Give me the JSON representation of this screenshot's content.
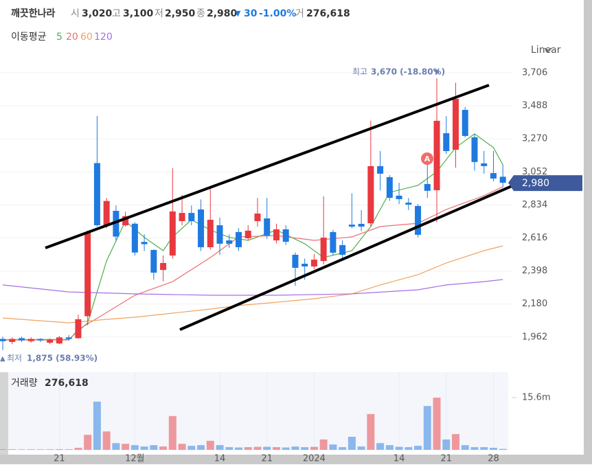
{
  "header": {
    "name": "깨끗한나라",
    "items": [
      {
        "label": "시",
        "value": "3,020"
      },
      {
        "label": "고",
        "value": "3,100"
      },
      {
        "label": "저",
        "value": "2,950"
      },
      {
        "label": "종",
        "value": "2,980"
      }
    ],
    "change_arrow": "▼",
    "change": "30",
    "change_pct": "-1.00%",
    "volume_label": "거",
    "volume": "276,618"
  },
  "scale_menu": "Linear",
  "chart_data": {
    "type": "candlestick",
    "ma_legend_title": "이동평균",
    "categories": [
      null,
      null,
      null,
      null,
      null,
      null,
      "21",
      null,
      null,
      null,
      null,
      null,
      null,
      null,
      "12월",
      null,
      null,
      null,
      null,
      null,
      null,
      null,
      null,
      "14",
      null,
      null,
      null,
      null,
      "21",
      null,
      null,
      null,
      null,
      "2024",
      null,
      null,
      null,
      null,
      null,
      null,
      null,
      null,
      "14",
      null,
      null,
      null,
      null,
      "21",
      null,
      null,
      null,
      null,
      "28",
      null
    ],
    "open": [
      1950,
      1930,
      1955,
      1935,
      1950,
      1925,
      1920,
      1960,
      1955,
      2100,
      3110,
      2700,
      2795,
      2700,
      2710,
      2590,
      2537,
      2405,
      2500,
      2727,
      2781,
      2804,
      2555,
      2700,
      2600,
      2655,
      2614,
      2727,
      2745,
      2600,
      2673,
      2505,
      2446,
      2428,
      2464,
      2655,
      2569,
      2704,
      2709,
      2713,
      3090,
      3017,
      2895,
      2849,
      2827,
      2972,
      2931,
      3307,
      3198,
      3461,
      3280,
      3108,
      3044,
      3020
    ],
    "high": [
      1965,
      1960,
      1965,
      1960,
      1955,
      1955,
      1970,
      1975,
      2110,
      2665,
      3420,
      2880,
      2830,
      2790,
      2720,
      2640,
      2540,
      2500,
      3076,
      2900,
      2830,
      2870,
      2945,
      2750,
      2640,
      2680,
      2700,
      2880,
      2880,
      2710,
      2700,
      2520,
      2480,
      2510,
      2890,
      2670,
      2600,
      2910,
      2800,
      3390,
      3190,
      3030,
      2980,
      2880,
      2840,
      3140,
      3670,
      3420,
      3640,
      3480,
      3300,
      3190,
      3190,
      3100
    ],
    "low": [
      1875,
      1915,
      1930,
      1925,
      1930,
      1915,
      1915,
      1940,
      1950,
      2040,
      2690,
      2680,
      2600,
      2690,
      2500,
      2530,
      2340,
      2330,
      2480,
      2700,
      2700,
      2530,
      2540,
      2505,
      2550,
      2530,
      2600,
      2690,
      2610,
      2580,
      2570,
      2300,
      2340,
      2410,
      2440,
      2500,
      2480,
      2680,
      2660,
      2690,
      2930,
      2860,
      2840,
      2800,
      2620,
      2880,
      2720,
      3170,
      3080,
      3280,
      3060,
      3040,
      2990,
      2950
    ],
    "close": [
      1935,
      1950,
      1940,
      1950,
      1940,
      1945,
      1960,
      1950,
      2080,
      2650,
      2700,
      2860,
      2625,
      2760,
      2520,
      2575,
      2387,
      2451,
      2791,
      2781,
      2727,
      2555,
      2736,
      2578,
      2578,
      2555,
      2664,
      2777,
      2632,
      2673,
      2591,
      2419,
      2428,
      2473,
      2618,
      2519,
      2505,
      2691,
      2691,
      3090,
      3040,
      2881,
      2872,
      2836,
      2637,
      2927,
      3389,
      3189,
      3534,
      3289,
      3117,
      3090,
      3008,
      2980
    ],
    "volume_title": "거래량",
    "volume_value": "276,618",
    "volume": [
      150000,
      180000,
      140000,
      160000,
      150000,
      170000,
      200000,
      180000,
      600000,
      4500000,
      14400000,
      5500000,
      2000000,
      1800000,
      1400000,
      1000000,
      1400000,
      1000000,
      10100000,
      1800000,
      1200000,
      1400000,
      2700000,
      1400000,
      800000,
      700000,
      800000,
      900000,
      900000,
      800000,
      700000,
      1000000,
      800000,
      900000,
      3100000,
      1600000,
      800000,
      3900000,
      1000000,
      10700000,
      2000000,
      1400000,
      900000,
      800000,
      1200000,
      13100000,
      15600000,
      3100000,
      4700000,
      1400000,
      800000,
      800000,
      600000,
      276618
    ],
    "up_color": "#e8393f",
    "down_color": "#1f7ae0",
    "ylim": [
      1762,
      3914
    ],
    "yticks": [
      {
        "value": 1962,
        "label": "1,962"
      },
      {
        "value": 2180,
        "label": "2,180"
      },
      {
        "value": 2398,
        "label": "2,398"
      },
      {
        "value": 2616,
        "label": "2,616"
      },
      {
        "value": 2834,
        "label": "2,834"
      },
      {
        "value": 3052,
        "label": "3,052"
      },
      {
        "value": 3270,
        "label": "3,270"
      },
      {
        "value": 3488,
        "label": "3,488"
      },
      {
        "value": 3706,
        "label": "3,706"
      }
    ],
    "volume_ylim": [
      0,
      22580000
    ],
    "volume_yticks": [
      {
        "value": 15600000,
        "label": "15.6m"
      }
    ],
    "grid": true,
    "series": [
      {
        "name": "5",
        "color": "#4caf50",
        "x": [
          0,
          7,
          9,
          11,
          13,
          15,
          17,
          18,
          20,
          22,
          24,
          26,
          29,
          32,
          34,
          37,
          39,
          41,
          44,
          46,
          48,
          50,
          52,
          53
        ],
        "values": [
          1945,
          1947,
          2056,
          2464,
          2727,
          2620,
          2532,
          2623,
          2736,
          2668,
          2620,
          2600,
          2668,
          2578,
          2487,
          2532,
          2691,
          2917,
          2963,
          3053,
          3212,
          3303,
          3212,
          3099
        ]
      },
      {
        "name": "20",
        "color": "#ec6f6f",
        "x": [
          0,
          7,
          8,
          11,
          14,
          18,
          22,
          25,
          29,
          33,
          37,
          40,
          44,
          47,
          51,
          53
        ],
        "values": [
          1943,
          1943,
          2011,
          2124,
          2238,
          2328,
          2487,
          2623,
          2632,
          2600,
          2623,
          2691,
          2713,
          2804,
          2895,
          2954
        ]
      },
      {
        "name": "60",
        "color": "#f2a25c",
        "x": [
          0,
          7,
          11,
          14,
          18,
          22,
          25,
          29,
          33,
          37,
          40,
          44,
          47,
          51,
          53
        ],
        "values": [
          2088,
          2056,
          2079,
          2093,
          2120,
          2147,
          2170,
          2192,
          2215,
          2247,
          2306,
          2374,
          2451,
          2532,
          2564
        ]
      },
      {
        "name": "120",
        "color": "#a56ee6",
        "x": [
          0,
          7,
          14,
          22,
          29,
          37,
          44,
          47,
          51,
          53
        ],
        "values": [
          2306,
          2260,
          2247,
          2238,
          2238,
          2247,
          2274,
          2306,
          2328,
          2342
        ]
      }
    ],
    "high_marker": {
      "prefix": "최고",
      "value": 3670,
      "label": "3,670 (-18.80%)",
      "arrow": "▼"
    },
    "low_marker": {
      "prefix": "최저",
      "value": 1875,
      "label": "1,875 (58.93%)",
      "arrow": "▲"
    },
    "price_tag": {
      "value": 2980,
      "label": "2,980"
    },
    "event_marker": "A"
  }
}
